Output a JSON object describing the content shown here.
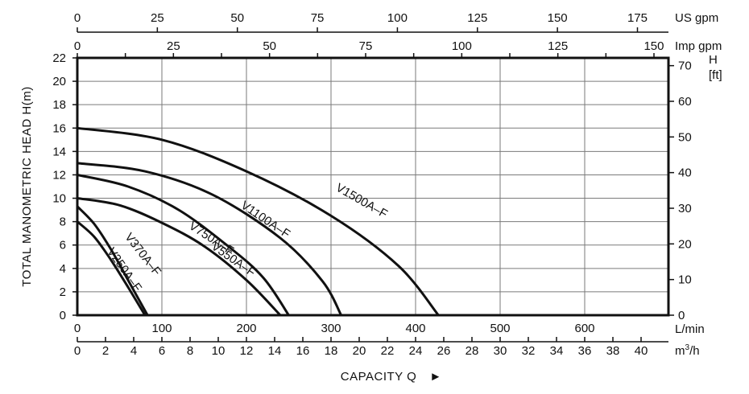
{
  "chart_data": {
    "type": "line",
    "x_unit": "L/min",
    "ylabel": "TOTAL  MANOMETRIC HEAD  H(m)",
    "xlabel": "CAPACITY  Q",
    "xlabel_arrow": "►",
    "xlim": [
      0,
      700
    ],
    "ylim": [
      0,
      22
    ],
    "grid": true,
    "axes": {
      "bottom": {
        "unit": "L/min",
        "min": 0,
        "max": 700,
        "ticks": [
          0,
          100,
          200,
          300,
          400,
          500,
          600
        ]
      },
      "bottom2": {
        "unit_base": "m",
        "unit_sup": "3",
        "unit_tail": "/h",
        "ticks": [
          0,
          2,
          4,
          6,
          8,
          10,
          12,
          14,
          16,
          18,
          20,
          22,
          24,
          26,
          28,
          30,
          32,
          34,
          36,
          38,
          40
        ]
      },
      "top": {
        "unit": "US gpm",
        "ticks": [
          0,
          25,
          50,
          75,
          100,
          125,
          150,
          175
        ],
        "labeled_ticks": [
          0,
          25,
          50,
          75,
          100,
          125,
          150,
          175
        ]
      },
      "top2": {
        "unit": "Imp gpm",
        "ticks": [
          0,
          12.5,
          25,
          37.5,
          50,
          62.5,
          75,
          87.5,
          100,
          112.5,
          125,
          137.5,
          150
        ],
        "labeled_ticks": [
          0,
          25,
          50,
          75,
          100,
          125,
          150
        ]
      },
      "left": {
        "min": 0,
        "max": 22,
        "ticks": [
          0,
          2,
          4,
          6,
          8,
          10,
          12,
          14,
          16,
          18,
          20,
          22
        ]
      },
      "right": {
        "unit_line1": "H",
        "unit_line2": "[ft]",
        "ticks": [
          0,
          10,
          20,
          30,
          40,
          50,
          60,
          70
        ]
      }
    },
    "series": [
      {
        "name": "V250A–F",
        "x": [
          0,
          20,
          40,
          60,
          80
        ],
        "y": [
          8,
          6.7,
          4.7,
          2.4,
          0
        ]
      },
      {
        "name": "V370A–F",
        "x": [
          0,
          20,
          40,
          60,
          83
        ],
        "y": [
          9.3,
          7.8,
          5.6,
          3.0,
          0
        ]
      },
      {
        "name": "V550A–F",
        "x": [
          0,
          50,
          100,
          150,
          200,
          240
        ],
        "y": [
          10,
          9.4,
          7.9,
          5.9,
          3.0,
          0
        ]
      },
      {
        "name": "V750A–F",
        "x": [
          0,
          60,
          120,
          180,
          220,
          250
        ],
        "y": [
          12,
          11.0,
          9.0,
          5.8,
          3.2,
          0
        ]
      },
      {
        "name": "V1100A–F",
        "x": [
          0,
          80,
          160,
          240,
          290,
          312
        ],
        "y": [
          13,
          12.3,
          10.3,
          6.6,
          2.9,
          0
        ]
      },
      {
        "name": "V1500A–F",
        "x": [
          0,
          100,
          200,
          300,
          380,
          427
        ],
        "y": [
          16,
          15.0,
          12.3,
          8.5,
          4.2,
          0
        ]
      }
    ]
  }
}
